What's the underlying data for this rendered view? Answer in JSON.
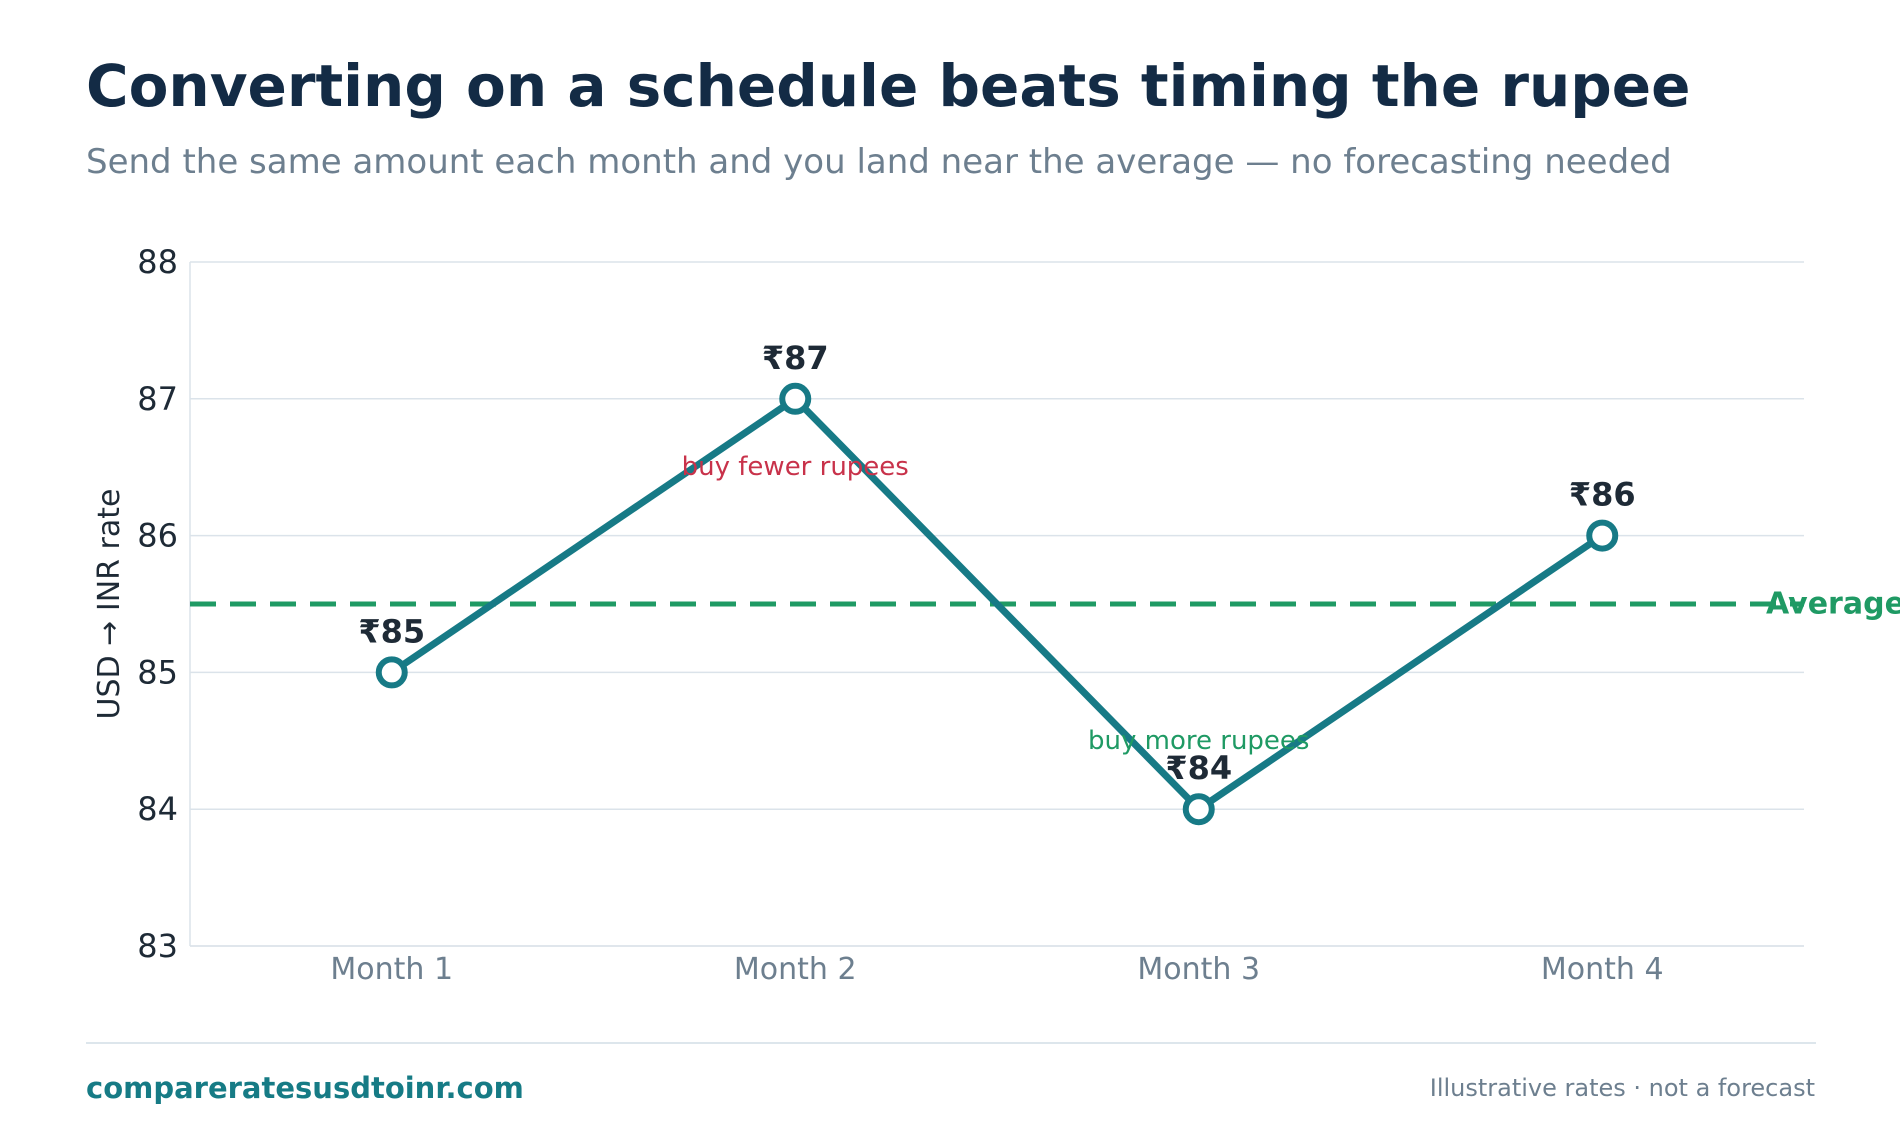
{
  "header": {
    "title": "Converting on a schedule beats timing the rupee",
    "subtitle": "Send the same amount each month and you land near the average — no forecasting needed"
  },
  "footer": {
    "brand": "compareratesusdtoinr.com",
    "note": "Illustrative rates · not a forecast"
  },
  "chart_data": {
    "type": "line",
    "title": "Converting on a schedule beats timing the rupee",
    "subtitle": "Send the same amount each month and you land near the average — no forecasting needed",
    "xlabel": "",
    "ylabel": "USD → INR rate",
    "categories": [
      "Month 1",
      "Month 2",
      "Month 3",
      "Month 4"
    ],
    "series": [
      {
        "values": [
          85,
          87,
          84,
          86
        ],
        "color": "#177a86"
      }
    ],
    "point_labels": [
      "₹85",
      "₹87",
      "₹84",
      "₹86"
    ],
    "ylim": [
      83,
      88
    ],
    "yticks": [
      83,
      84,
      85,
      86,
      87,
      88
    ],
    "grid": true,
    "reference_line": {
      "value": 85.5,
      "label": "Average",
      "color": "#1f9a64",
      "style": "dashed"
    },
    "annotations": [
      {
        "text": "buy fewer rupees",
        "category": "Month 2",
        "value": 86.5,
        "color": "#c8324a"
      },
      {
        "text": "buy more rupees",
        "category": "Month 3",
        "value": 84.5,
        "color": "#1f9a64"
      }
    ],
    "colors": {
      "text": "#1e2a36",
      "tick": "#6d7f8f",
      "grid": "#dbe3ea",
      "title": "#132b45"
    }
  }
}
